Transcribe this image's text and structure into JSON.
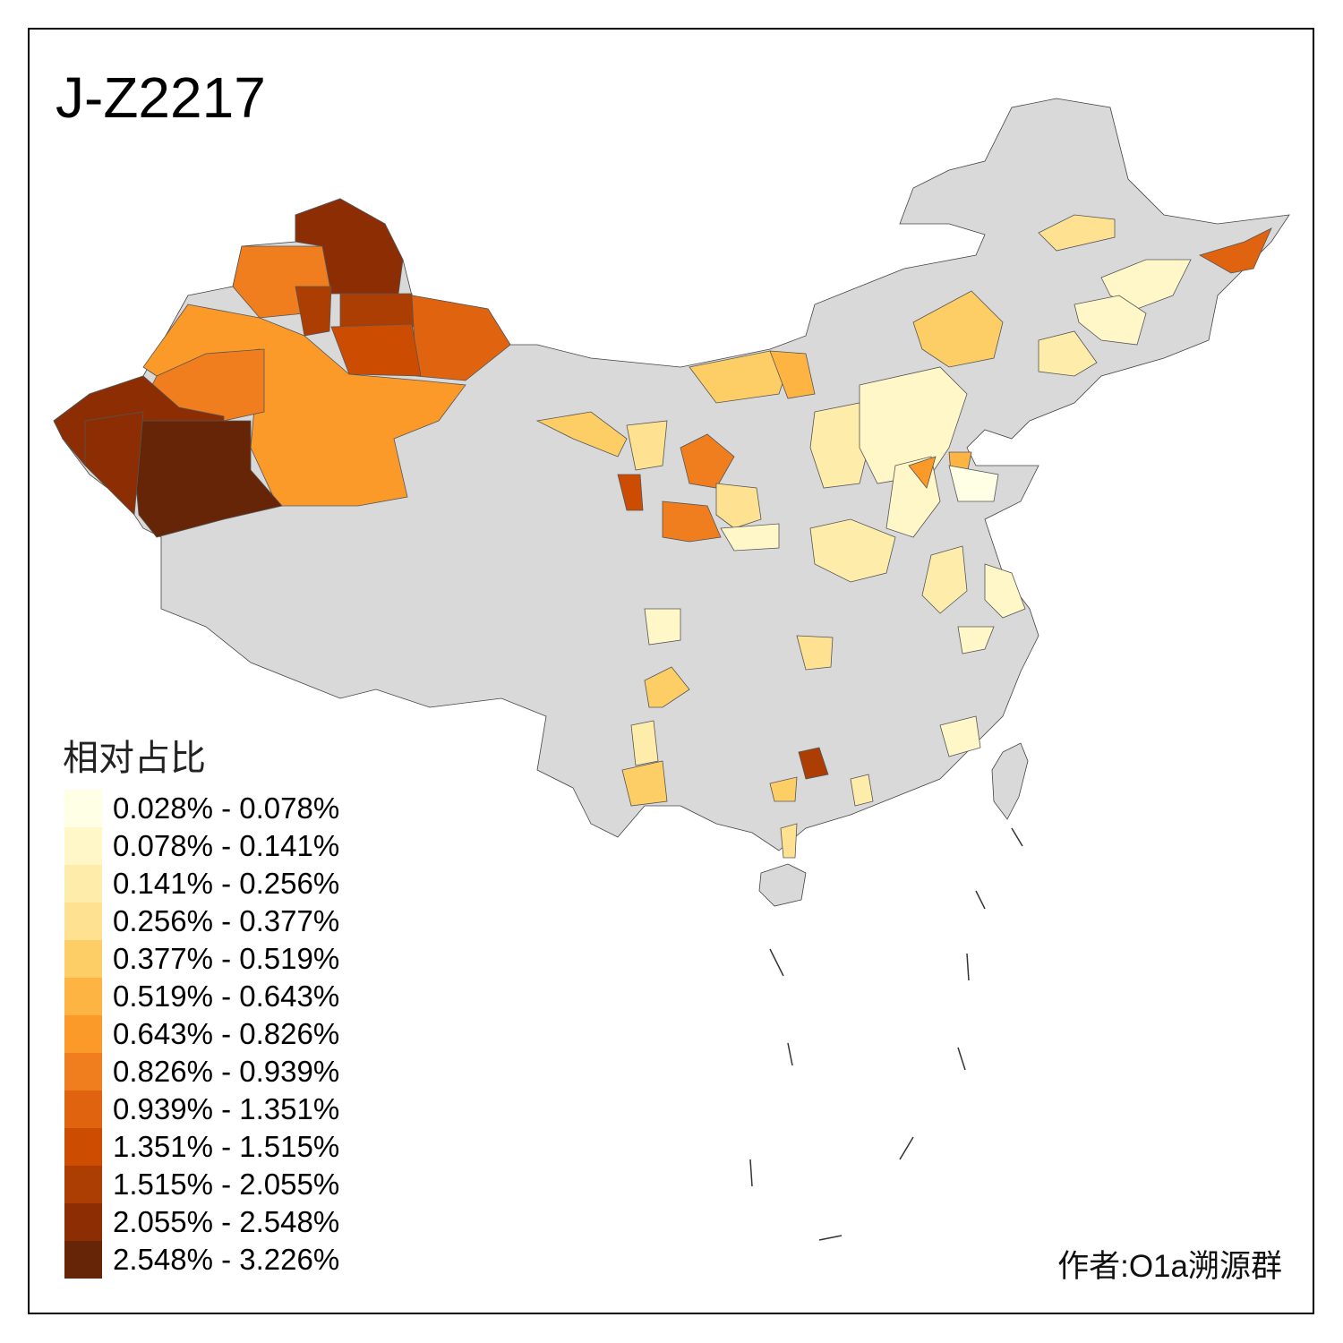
{
  "title": "J-Z2217",
  "legend": {
    "title": "相对占比",
    "bins": [
      {
        "label": "0.028% - 0.078%",
        "color": "#FFFFE5"
      },
      {
        "label": "0.078% - 0.141%",
        "color": "#FFF7C8"
      },
      {
        "label": "0.141% - 0.256%",
        "color": "#FEEDAA"
      },
      {
        "label": "0.256% - 0.377%",
        "color": "#FEE292"
      },
      {
        "label": "0.377% - 0.519%",
        "color": "#FECE66"
      },
      {
        "label": "0.519% - 0.643%",
        "color": "#FDB443"
      },
      {
        "label": "0.643% - 0.826%",
        "color": "#FB9A29"
      },
      {
        "label": "0.826% - 0.939%",
        "color": "#F07E1F"
      },
      {
        "label": "0.939% - 1.351%",
        "color": "#E06310"
      },
      {
        "label": "1.351% - 1.515%",
        "color": "#CC4C02"
      },
      {
        "label": "1.515% - 2.055%",
        "color": "#AD3E03"
      },
      {
        "label": "2.055% - 2.548%",
        "color": "#8C2D04"
      },
      {
        "label": "2.548% - 3.226%",
        "color": "#662506"
      }
    ]
  },
  "no_data_color": "#D9D9D9",
  "author": "作者:O1a溯源群"
}
